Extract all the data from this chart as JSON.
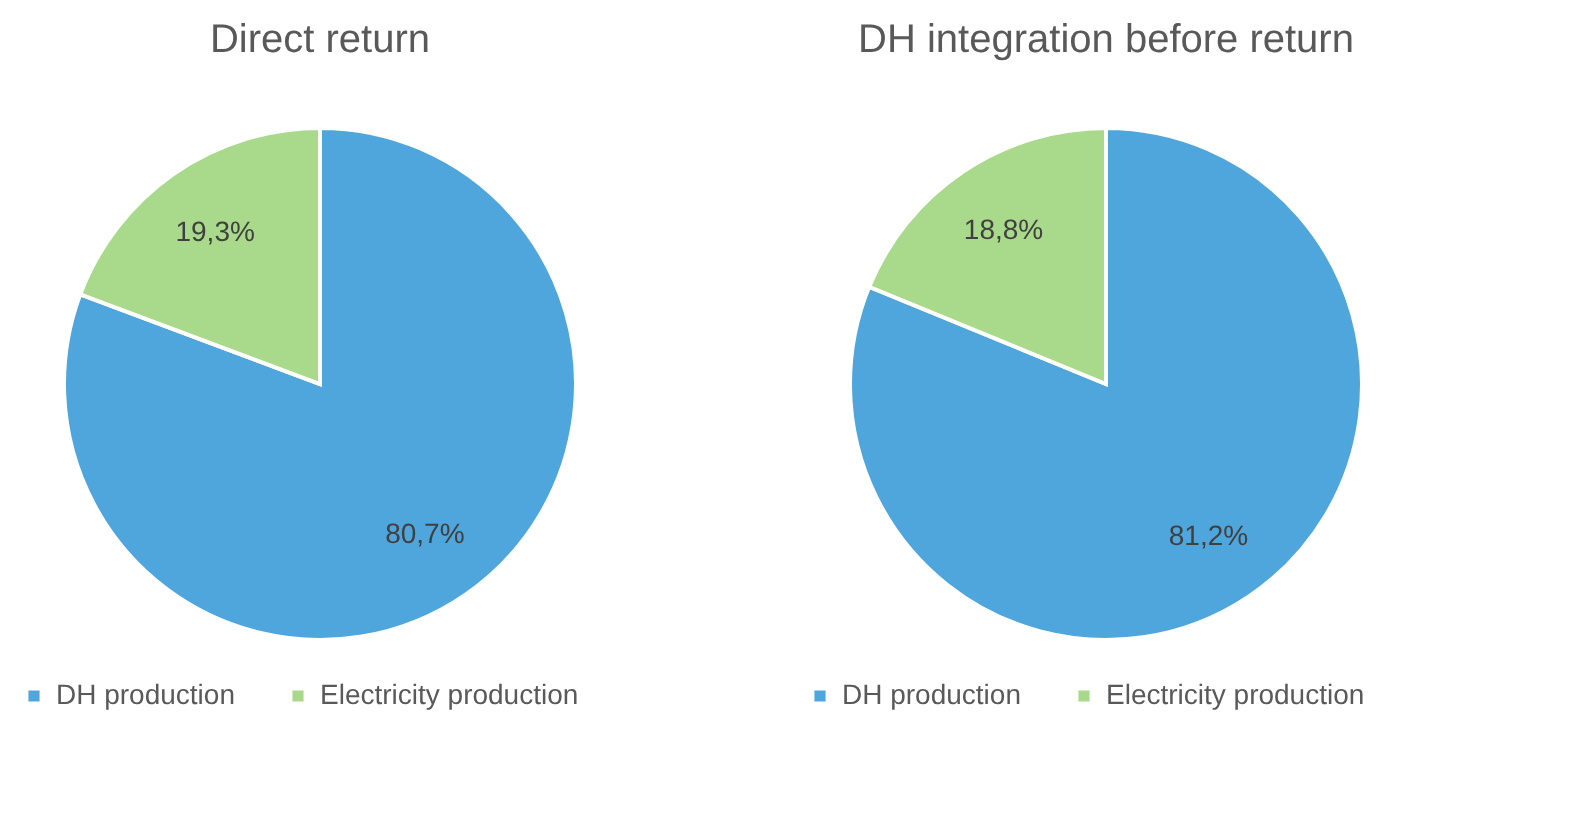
{
  "chart_data": [
    {
      "type": "pie",
      "title": "Direct return",
      "categories": [
        "DH production",
        "Electricity production"
      ],
      "values": [
        80.7,
        19.3
      ],
      "colors": [
        "#4ea6dc",
        "#a9d98b"
      ],
      "value_labels": [
        "80,7%",
        "19,3%"
      ],
      "legend": "bottom"
    },
    {
      "type": "pie",
      "title": "DH integration before return",
      "categories": [
        "DH production",
        "Electricity production"
      ],
      "values": [
        81.2,
        18.8
      ],
      "colors": [
        "#4ea6dc",
        "#a9d98b"
      ],
      "value_labels": [
        "81,2%",
        "18,8%"
      ],
      "legend": "bottom"
    }
  ]
}
